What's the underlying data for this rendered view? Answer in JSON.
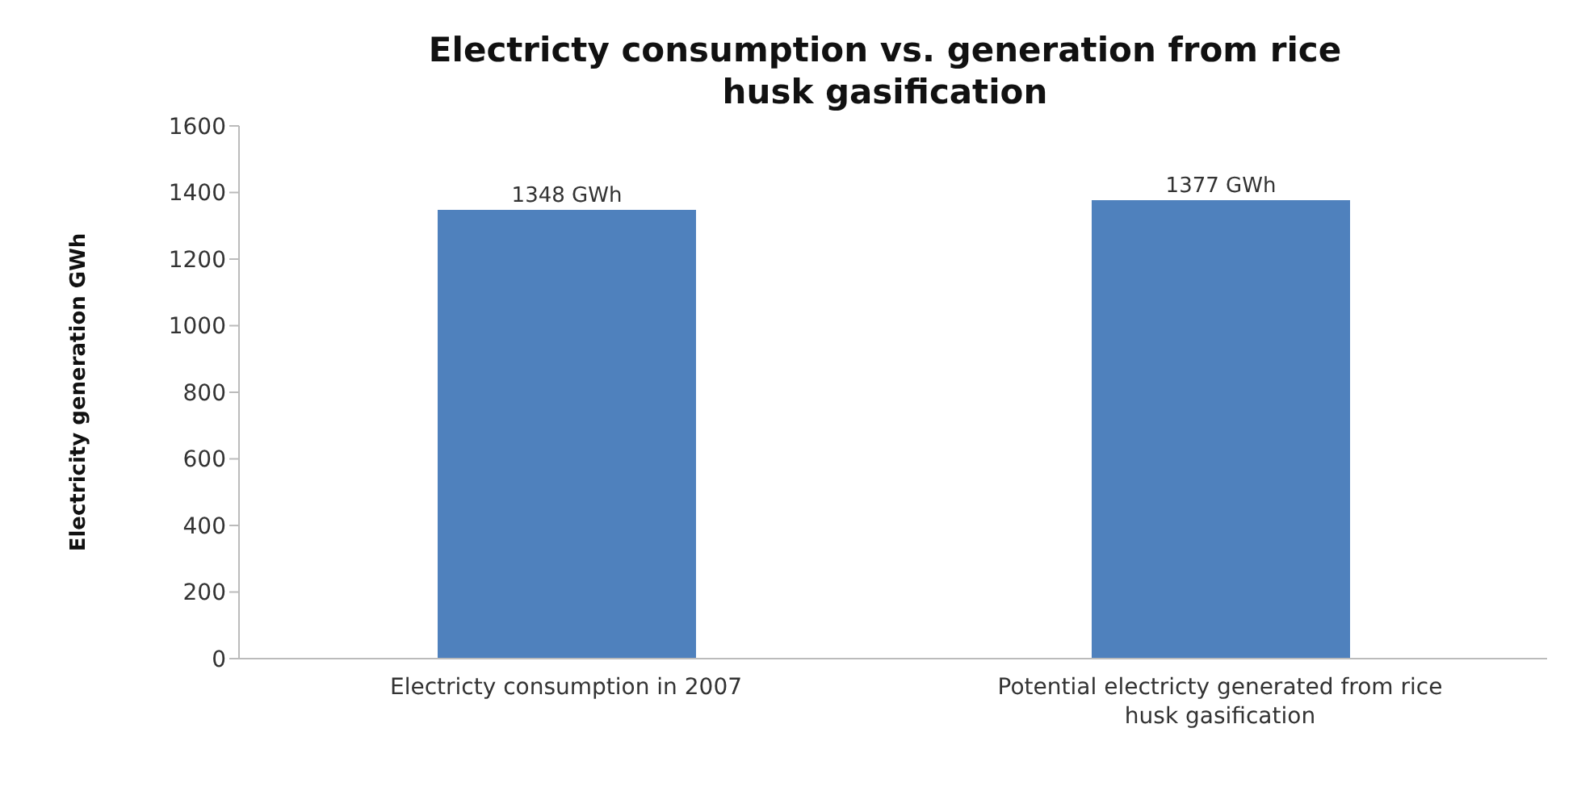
{
  "chart_data": {
    "type": "bar",
    "title": "Electricty consumption vs. generation from rice husk gasification",
    "ylabel": "Electricity generation GWh",
    "categories": [
      "Electricty consumption in 2007",
      "Potential electricty generated from rice husk gasification"
    ],
    "values": [
      1348,
      1377
    ],
    "value_labels": [
      "1348 GWh",
      "1377 GWh"
    ],
    "color": "#4f81bd",
    "ylim": [
      0,
      1600
    ],
    "yticks": [
      0,
      200,
      400,
      600,
      800,
      1000,
      1200,
      1400,
      1600
    ],
    "grid": false
  }
}
